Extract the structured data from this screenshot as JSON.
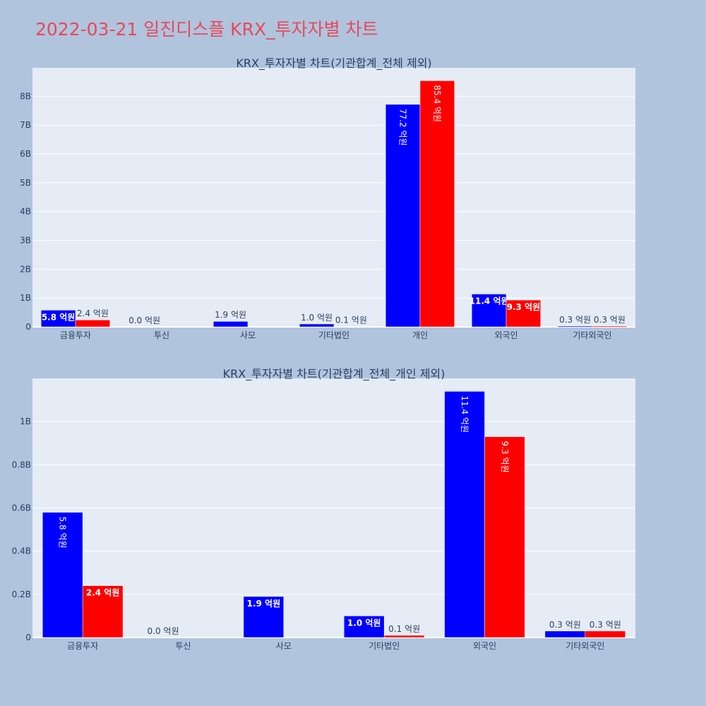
{
  "page_title": "2022-03-21 일진디스플 KRX_투자자별 차트",
  "colors": {
    "buy": "#0000ff",
    "sell": "#ff0000",
    "plot_bg": "#e5ecf6",
    "page_bg": "#b0c4de",
    "title": "#e8485a"
  },
  "chart_data": [
    {
      "type": "bar",
      "title": "KRX_투자자별 차트(기관합계_전체 제외)",
      "categories": [
        "금융투자",
        "투신",
        "사모",
        "기타법인",
        "개인",
        "외국인",
        "기타외국인"
      ],
      "series": [
        {
          "values": [
            580000000,
            0,
            190000000,
            100000000,
            7720000000,
            1140000000,
            30000000
          ],
          "labels": [
            "5.8 억원",
            "0.0 억원",
            "1.9 억원",
            "1.0 억원",
            "77.2 억원",
            "11.4 억원",
            "0.3 억원"
          ]
        },
        {
          "values": [
            240000000,
            null,
            null,
            10000000,
            8540000000,
            930000000,
            30000000
          ],
          "labels": [
            "2.4 억원",
            "",
            "",
            "0.1 억원",
            "85.4 억원",
            "9.3 억원",
            "0.3 억원"
          ]
        }
      ],
      "yticks": [
        0,
        1000000000,
        2000000000,
        3000000000,
        4000000000,
        5000000000,
        6000000000,
        7000000000,
        8000000000
      ],
      "ytick_labels": [
        "0",
        "1B",
        "2B",
        "3B",
        "4B",
        "5B",
        "6B",
        "7B",
        "8B"
      ],
      "ylim": [
        0,
        8990000000
      ],
      "grid": true
    },
    {
      "type": "bar",
      "title": "KRX_투자자별 차트(기관합계_전체_개인 제외)",
      "categories": [
        "금융투자",
        "투신",
        "사모",
        "기타법인",
        "외국인",
        "기타외국인"
      ],
      "series": [
        {
          "values": [
            580000000,
            0,
            190000000,
            100000000,
            1140000000,
            30000000
          ],
          "labels": [
            "5.8 억원",
            "0.0 억원",
            "1.9 억원",
            "1.0 억원",
            "11.4 억원",
            "0.3 억원"
          ]
        },
        {
          "values": [
            240000000,
            null,
            null,
            10000000,
            930000000,
            30000000
          ],
          "labels": [
            "2.4 억원",
            "",
            "",
            "0.1 억원",
            "9.3 억원",
            "0.3 억원"
          ]
        }
      ],
      "yticks": [
        0,
        200000000,
        400000000,
        600000000,
        800000000,
        1000000000
      ],
      "ytick_labels": [
        "0",
        "0.2B",
        "0.4B",
        "0.6B",
        "0.8B",
        "1B"
      ],
      "ylim": [
        0,
        1200000000
      ],
      "grid": true
    }
  ]
}
